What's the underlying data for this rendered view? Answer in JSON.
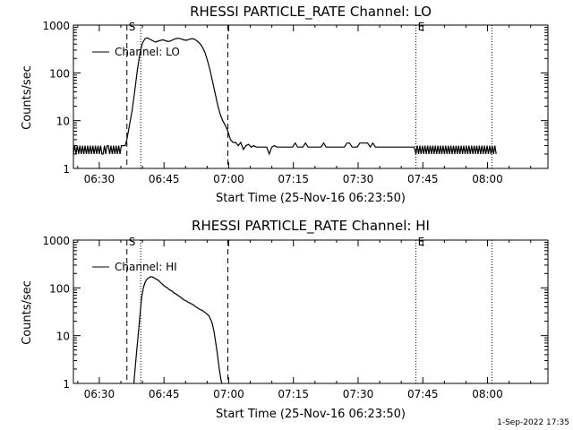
{
  "charts": [
    {
      "type": "line",
      "title": "RHESSI PARTICLE_RATE Channel: LO",
      "xlabel": "Start Time (25-Nov-16 06:23:50)",
      "ylabel": "Counts/sec",
      "yscale": "log",
      "ylim": [
        1,
        1000
      ],
      "xlim_min": [
        384,
        494
      ],
      "xticks": [
        {
          "v": 390,
          "label": "06:30"
        },
        {
          "v": 405,
          "label": "06:45"
        },
        {
          "v": 420,
          "label": "07:00"
        },
        {
          "v": 435,
          "label": "07:15"
        },
        {
          "v": 450,
          "label": "07:30"
        },
        {
          "v": 465,
          "label": "07:45"
        },
        {
          "v": 480,
          "label": "08:00"
        }
      ],
      "yticks": [
        {
          "v": 1,
          "label": "1"
        },
        {
          "v": 10,
          "label": "10"
        },
        {
          "v": 100,
          "label": "100"
        },
        {
          "v": 1000,
          "label": "1000"
        }
      ],
      "legend": {
        "label": "Channel: LO",
        "position": "top-left"
      },
      "markers": [
        {
          "label": "S",
          "x_min": 396.4,
          "style": "dotted-label"
        },
        {
          "label": "E",
          "x_min": 463.4,
          "style": "dotted-label"
        }
      ],
      "dashed_lines_min": [
        396.4,
        419.8
      ],
      "dotted_lines_min": [
        399.6,
        463.4,
        481.0
      ],
      "series": [
        {
          "name": "Channel: LO",
          "x_min": [
            384.0,
            384.3,
            384.6,
            384.9,
            385.2,
            385.5,
            385.8,
            386.1,
            386.4,
            386.7,
            387.0,
            387.3,
            387.6,
            387.9,
            388.2,
            388.5,
            388.8,
            389.1,
            389.4,
            389.7,
            390.0,
            390.3,
            390.6,
            390.9,
            391.2,
            391.5,
            391.8,
            392.1,
            392.4,
            392.7,
            393.0,
            393.3,
            393.6,
            393.9,
            394.2,
            394.5,
            394.8,
            395.1,
            395.4,
            395.7,
            396.0,
            396.4,
            397.0,
            397.6,
            398.2,
            398.8,
            399.4,
            400.0,
            400.6,
            401.2,
            401.8,
            402.4,
            403.0,
            403.6,
            404.2,
            404.8,
            405.4,
            406.0,
            406.6,
            407.2,
            407.8,
            408.4,
            409.0,
            409.6,
            410.2,
            410.8,
            411.4,
            412.0,
            412.6,
            413.2,
            413.8,
            414.4,
            415.0,
            415.6,
            416.2,
            416.8,
            417.4,
            418.0,
            418.6,
            419.2,
            419.8,
            420.4,
            421.0,
            421.6,
            422.2,
            422.8,
            423.4,
            424.0,
            424.6,
            425.2,
            425.8,
            426.4,
            427.0,
            427.6,
            428.2,
            428.8,
            429.4,
            430.0,
            430.6,
            431.2,
            431.8,
            432.4,
            433.0,
            433.6,
            434.2,
            434.8,
            435.4,
            436.0,
            436.6,
            437.2,
            437.8,
            438.4,
            439.0,
            439.6,
            440.2,
            440.8,
            441.4,
            442.0,
            442.6,
            443.2,
            443.8,
            444.4,
            445.0,
            445.6,
            446.2,
            446.8,
            447.4,
            448.0,
            448.6,
            449.2,
            449.8,
            450.4,
            451.0,
            451.6,
            452.2,
            452.8,
            453.4,
            454.0,
            454.6,
            455.2,
            455.8,
            456.4,
            457.0,
            457.6,
            458.2,
            458.8,
            459.4,
            460.0,
            460.6,
            461.2,
            461.8,
            462.4,
            463.0,
            463.4,
            463.7,
            464.0,
            464.3,
            464.6,
            464.9,
            465.2,
            465.5,
            465.8,
            466.1,
            466.4,
            466.7,
            467.0,
            467.3,
            467.6,
            467.9,
            468.2,
            468.5,
            468.8,
            469.1,
            469.4,
            469.7,
            470.0,
            470.3,
            470.6,
            470.9,
            471.2,
            471.5,
            471.8,
            472.1,
            472.4,
            472.7,
            473.0,
            473.3,
            473.6,
            473.9,
            474.2,
            474.5,
            474.8,
            475.1,
            475.4,
            475.7,
            476.0,
            476.3,
            476.6,
            476.9,
            477.2,
            477.5,
            477.8,
            478.1,
            478.4,
            478.7,
            479.0,
            479.3,
            479.6,
            479.9,
            480.2,
            480.5,
            480.8,
            481.1,
            481.4,
            481.7,
            482.0
          ],
          "values": [
            2,
            3,
            2,
            3,
            2,
            3,
            2,
            3,
            2,
            3,
            2,
            3,
            2,
            3,
            2,
            3,
            2,
            3,
            2,
            3,
            2,
            3,
            2,
            2,
            3,
            2,
            3,
            3,
            2,
            3,
            2,
            3,
            2,
            3,
            2,
            3,
            2,
            3,
            3,
            3,
            3,
            4,
            8,
            16,
            40,
            110,
            250,
            420,
            520,
            540,
            500,
            470,
            440,
            460,
            480,
            490,
            470,
            450,
            470,
            500,
            520,
            530,
            510,
            490,
            480,
            500,
            520,
            510,
            470,
            420,
            360,
            280,
            190,
            120,
            70,
            40,
            22,
            14,
            10,
            8,
            6,
            4,
            3.5,
            3.5,
            3,
            3.5,
            2.5,
            3,
            3.2,
            2.8,
            3,
            2.8,
            2.8,
            2.8,
            2.8,
            2.8,
            2,
            2.8,
            3,
            2.8,
            2.8,
            2.8,
            2.8,
            2.8,
            2.8,
            2.8,
            3.4,
            2.8,
            2.8,
            2.8,
            3.4,
            2.8,
            2.8,
            2.8,
            2.8,
            2.8,
            2.8,
            3.4,
            2.8,
            2.8,
            2.8,
            2.8,
            2.8,
            2.8,
            2.8,
            2.8,
            3.4,
            3.4,
            2.8,
            2.8,
            2.8,
            3.4,
            3.4,
            3.4,
            3.4,
            2.8,
            3.4,
            2.8,
            2.8,
            2.8,
            2.8,
            2.8,
            2.8,
            2.8,
            2.8,
            2.8,
            2.8,
            2.8,
            2.8,
            2.8,
            2.8,
            2.8,
            2.8,
            2,
            3,
            2,
            3,
            2,
            3,
            2,
            3,
            2,
            3,
            2,
            3,
            2,
            3,
            2,
            3,
            2,
            3,
            2,
            3,
            2,
            3,
            2,
            3,
            2,
            3,
            2,
            3,
            2,
            3,
            2,
            3,
            2,
            3,
            2,
            3,
            2,
            3,
            2,
            3,
            2,
            3,
            2,
            3,
            2,
            3,
            2,
            3,
            2,
            3,
            2,
            3,
            2,
            3,
            2,
            3,
            2,
            3,
            2,
            3,
            2,
            3,
            2,
            3
          ]
        }
      ]
    },
    {
      "type": "line",
      "title": "RHESSI PARTICLE_RATE Channel: HI",
      "xlabel": "Start Time (25-Nov-16 06:23:50)",
      "ylabel": "Counts/sec",
      "yscale": "log",
      "ylim": [
        1,
        1000
      ],
      "xlim_min": [
        384,
        494
      ],
      "xticks": [
        {
          "v": 390,
          "label": "06:30"
        },
        {
          "v": 405,
          "label": "06:45"
        },
        {
          "v": 420,
          "label": "07:00"
        },
        {
          "v": 435,
          "label": "07:15"
        },
        {
          "v": 450,
          "label": "07:30"
        },
        {
          "v": 465,
          "label": "07:45"
        },
        {
          "v": 480,
          "label": "08:00"
        }
      ],
      "yticks": [
        {
          "v": 1,
          "label": "1"
        },
        {
          "v": 10,
          "label": "10"
        },
        {
          "v": 100,
          "label": "100"
        },
        {
          "v": 1000,
          "label": "1000"
        }
      ],
      "legend": {
        "label": "Channel: HI",
        "position": "top-left"
      },
      "markers": [
        {
          "label": "S",
          "x_min": 396.4,
          "style": "dotted-label"
        },
        {
          "label": "E",
          "x_min": 463.4,
          "style": "dotted-label"
        }
      ],
      "dashed_lines_min": [
        396.4,
        419.8
      ],
      "dotted_lines_min": [
        399.6,
        463.4,
        481.0
      ],
      "series": [
        {
          "name": "Channel: HI",
          "x_min": [
            398.0,
            398.3,
            398.6,
            399.0,
            399.4,
            399.8,
            400.2,
            400.6,
            401.0,
            401.4,
            401.8,
            402.2,
            402.6,
            403.0,
            403.4,
            403.8,
            404.2,
            404.6,
            405.0,
            405.4,
            405.8,
            406.2,
            406.6,
            407.0,
            407.4,
            407.8,
            408.2,
            408.6,
            409.0,
            409.4,
            409.8,
            410.2,
            410.6,
            411.0,
            411.4,
            411.8,
            412.2,
            412.6,
            413.0,
            413.4,
            413.8,
            414.2,
            414.6,
            415.0,
            415.4,
            415.8,
            416.2,
            416.6,
            417.0,
            417.4,
            417.8,
            418.2,
            418.4
          ],
          "values": [
            1,
            2,
            4,
            10,
            25,
            60,
            100,
            130,
            150,
            160,
            170,
            170,
            165,
            155,
            150,
            140,
            130,
            120,
            110,
            105,
            100,
            92,
            88,
            84,
            78,
            74,
            70,
            66,
            62,
            58,
            55,
            53,
            50,
            48,
            46,
            44,
            41,
            39,
            37,
            35,
            34,
            32,
            30,
            28,
            26,
            22,
            18,
            12,
            7,
            4,
            2,
            1.2,
            1
          ]
        }
      ]
    }
  ],
  "footer": {
    "date": "1-Sep-2022 17:35"
  }
}
